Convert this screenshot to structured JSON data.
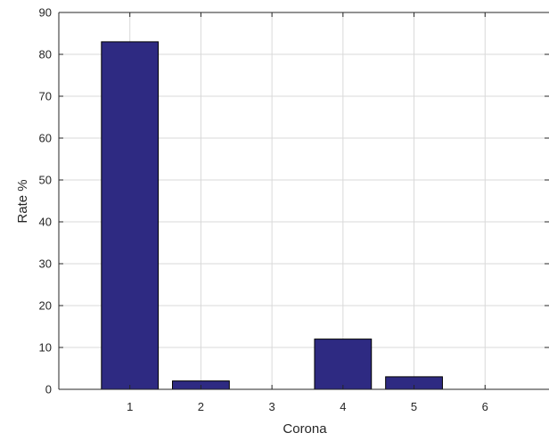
{
  "chart_data": {
    "type": "bar",
    "categories": [
      "1",
      "2",
      "3",
      "4",
      "5",
      "6"
    ],
    "values": [
      83,
      2,
      0,
      12,
      3,
      0
    ],
    "xlabel": "Corona",
    "ylabel": "Rate %",
    "xlim": [
      0,
      6.9
    ],
    "ylim": [
      0,
      90
    ],
    "yticks": [
      0,
      10,
      20,
      30,
      40,
      50,
      60,
      70,
      80,
      90
    ],
    "grid": true,
    "bar_color": "#2e2a82",
    "bar_edge_color": "#000000"
  }
}
